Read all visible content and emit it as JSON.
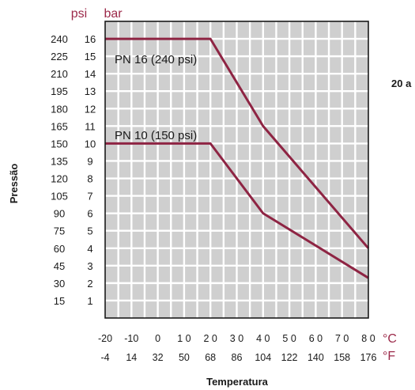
{
  "chart_data": {
    "type": "line",
    "y_unit_psi": "psi",
    "y_unit_bar": "bar",
    "x_unit_c": "°C",
    "x_unit_f": "°F",
    "ylabel": "Pressão",
    "xlabel": "Temperatura",
    "side_text": "20 a",
    "xlim": [
      -20,
      80
    ],
    "ylim": [
      0,
      17
    ],
    "grid": true,
    "bar_ticks": [
      "1",
      "2",
      "3",
      "4",
      "5",
      "6",
      "7",
      "8",
      "9",
      "10",
      "11",
      "12",
      "13",
      "14",
      "15",
      "16"
    ],
    "psi_ticks": [
      "15",
      "30",
      "45",
      "60",
      "75",
      "90",
      "105",
      "120",
      "135",
      "150",
      "165",
      "180",
      "195",
      "210",
      "225",
      "240"
    ],
    "celsius_ticks": [
      "-20",
      "-10",
      "0",
      "1 0",
      "2 0",
      "3 0",
      "4 0",
      "5 0",
      "6 0",
      "7 0",
      "8 0"
    ],
    "fahrenheit_ticks": [
      "-4",
      "14",
      "32",
      "50",
      "68",
      "86",
      "104",
      "122",
      "140",
      "158",
      "176"
    ],
    "series": [
      {
        "name": "PN 16 (240 psi)",
        "x": [
          -20,
          20,
          40,
          80
        ],
        "y": [
          16,
          16,
          11,
          4
        ],
        "color": "#8e2443"
      },
      {
        "name": "PN 10 (150 psi)",
        "x": [
          -20,
          20,
          40,
          80
        ],
        "y": [
          10,
          10,
          6,
          2.3
        ],
        "color": "#8e2443"
      }
    ],
    "colors": {
      "unit_text": "#9c2a4a",
      "plot_bg": "#cfcfcf",
      "grid": "#ffffff"
    }
  }
}
